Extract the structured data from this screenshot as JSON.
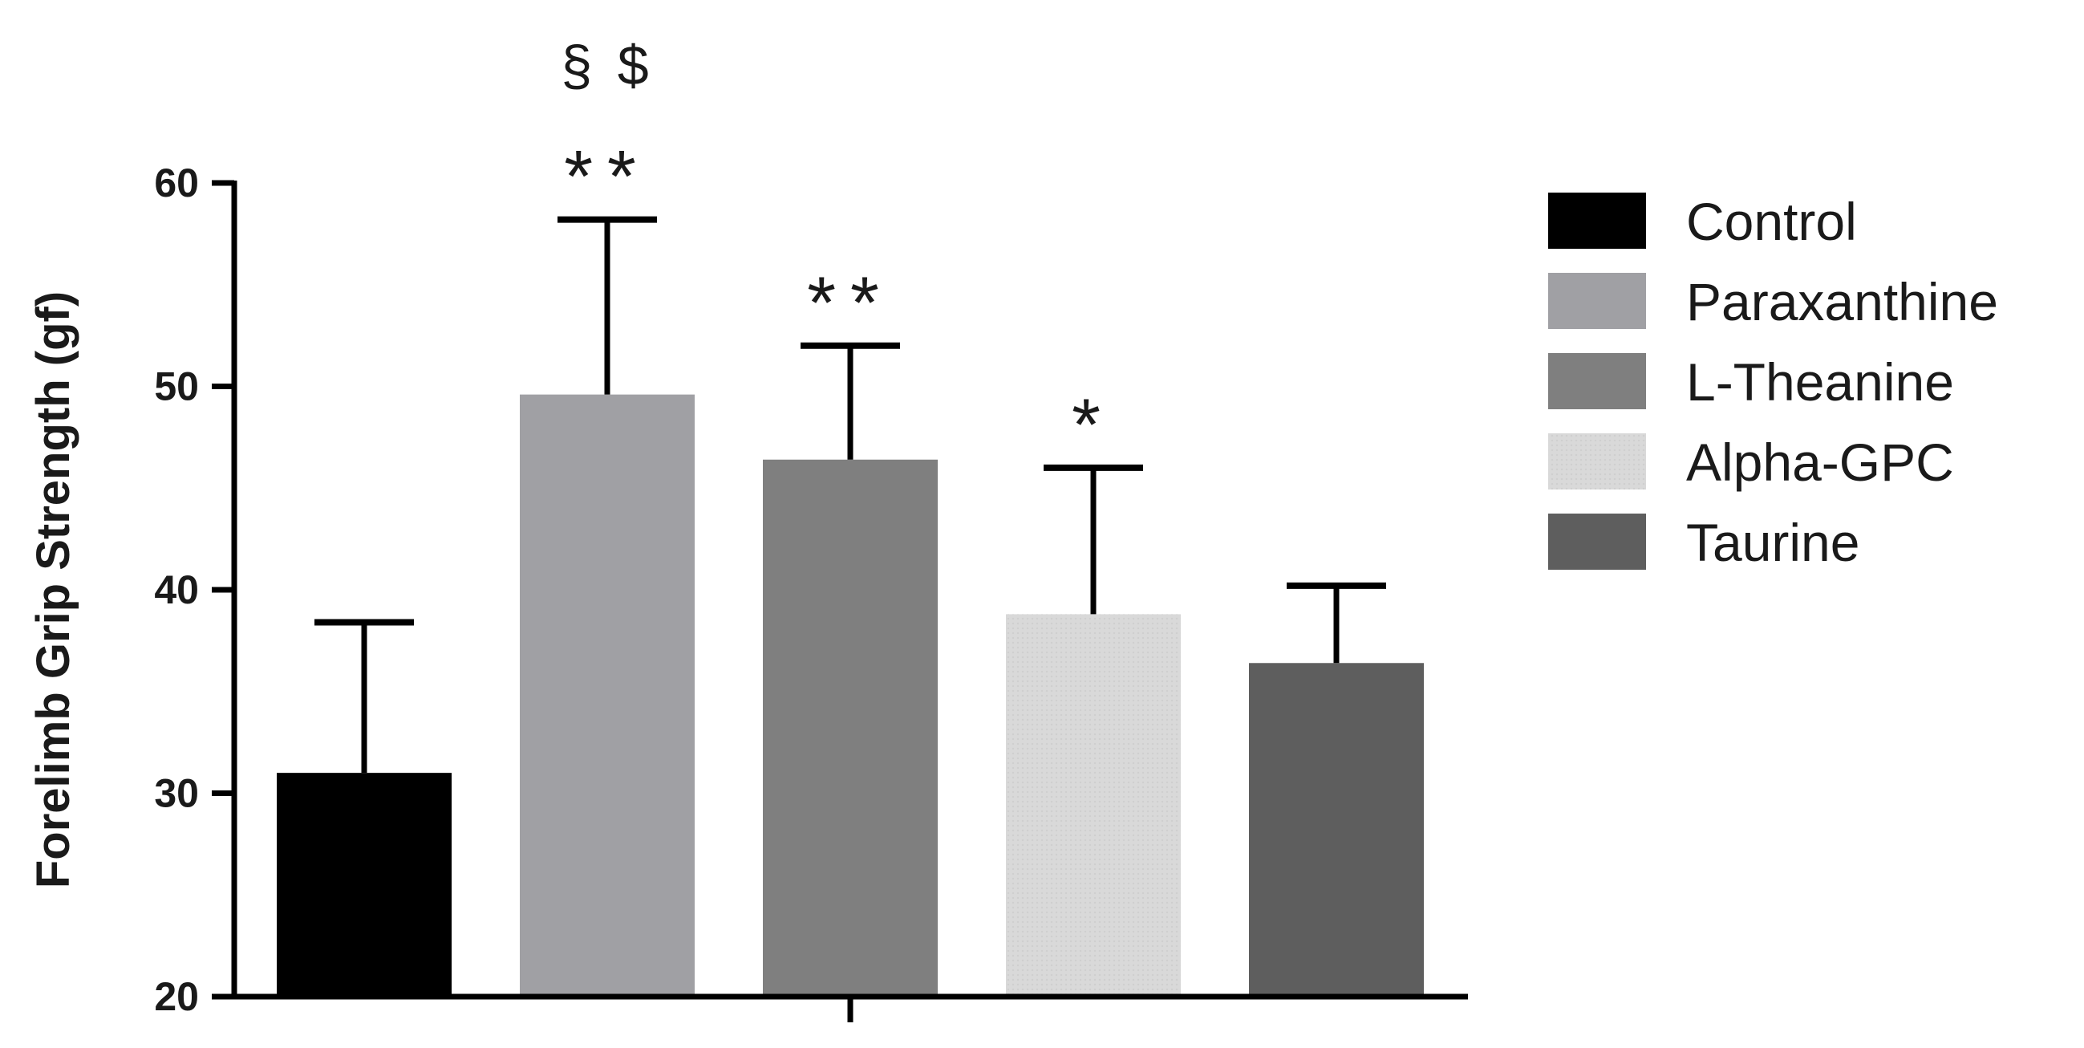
{
  "chart_data": {
    "type": "bar",
    "title": "",
    "xlabel": "",
    "ylabel": "Forelimb Grip Strength  (gf)",
    "ylim": [
      20,
      60
    ],
    "yticks": [
      20,
      30,
      40,
      50,
      60
    ],
    "grid": false,
    "legend_position": "right",
    "series": [
      {
        "name": "Control",
        "value": 31.0,
        "error": 7.4,
        "color": "#000000",
        "annotation": "",
        "annotation_top": ""
      },
      {
        "name": "Paraxanthine",
        "value": 49.6,
        "error": 8.6,
        "color": "#a0a0a4",
        "annotation": "**",
        "annotation_top": "§ $"
      },
      {
        "name": "L-Theanine",
        "value": 46.4,
        "error": 5.6,
        "color": "#7f7f7f",
        "annotation": "**",
        "annotation_top": ""
      },
      {
        "name": "Alpha-GPC",
        "value": 38.8,
        "error": 7.2,
        "color": "#d6d6d6",
        "annotation": "*",
        "annotation_top": ""
      },
      {
        "name": "Taurine",
        "value": 36.4,
        "error": 3.8,
        "color": "#5e5e5e",
        "annotation": "",
        "annotation_top": ""
      }
    ]
  }
}
